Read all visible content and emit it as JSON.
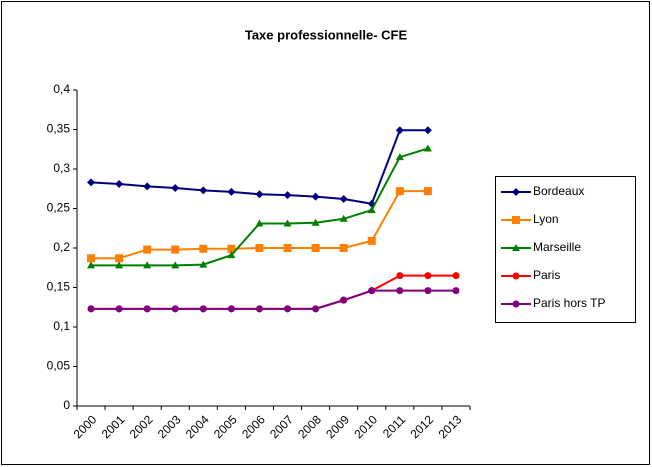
{
  "chart_data": {
    "type": "line",
    "title": "Taxe professionnelle-  CFE",
    "categories": [
      "2000",
      "2001",
      "2002",
      "2003",
      "2004",
      "2005",
      "2006",
      "2007",
      "2008",
      "2009",
      "2010",
      "2011",
      "2012",
      "2013"
    ],
    "ylim": [
      0,
      0.4
    ],
    "yticks": [
      0,
      {
        "value": 0.05,
        "label": "0,05"
      },
      {
        "value": 0.1,
        "label": "0,1"
      },
      {
        "value": 0.15,
        "label": "0,15"
      },
      {
        "value": 0.2,
        "label": "0,2"
      },
      {
        "value": 0.25,
        "label": "0,25"
      },
      {
        "value": 0.3,
        "label": "0,3"
      },
      {
        "value": 0.35,
        "label": "0,35"
      },
      {
        "value": 0.4,
        "label": "0,4"
      }
    ],
    "legend": "right",
    "series": [
      {
        "name": "Bordeaux",
        "color": "#000080",
        "marker": "diamond",
        "values": [
          0.283,
          0.281,
          0.278,
          0.276,
          0.273,
          0.271,
          0.268,
          0.267,
          0.265,
          0.262,
          0.256,
          0.349,
          0.349,
          null
        ]
      },
      {
        "name": "Lyon",
        "color": "#FF8000",
        "marker": "square",
        "values": [
          0.187,
          0.187,
          0.198,
          0.198,
          0.199,
          0.199,
          0.2,
          0.2,
          0.2,
          0.2,
          0.209,
          0.272,
          0.272,
          null
        ]
      },
      {
        "name": "Marseille",
        "color": "#008000",
        "marker": "triangle",
        "values": [
          0.178,
          0.178,
          0.178,
          0.178,
          0.179,
          0.191,
          0.231,
          0.231,
          0.232,
          0.237,
          0.248,
          0.315,
          0.326,
          null
        ]
      },
      {
        "name": "Paris",
        "color": "#FF0000",
        "marker": "circle",
        "values": [
          0.123,
          0.123,
          0.123,
          0.123,
          0.123,
          0.123,
          0.123,
          0.123,
          0.123,
          0.134,
          0.146,
          0.165,
          0.165,
          0.165
        ]
      },
      {
        "name": "Paris hors TP",
        "color": "#800080",
        "marker": "circle",
        "values": [
          0.123,
          0.123,
          0.123,
          0.123,
          0.123,
          0.123,
          0.123,
          0.123,
          0.123,
          0.134,
          0.146,
          0.146,
          0.146,
          0.146
        ]
      }
    ]
  }
}
